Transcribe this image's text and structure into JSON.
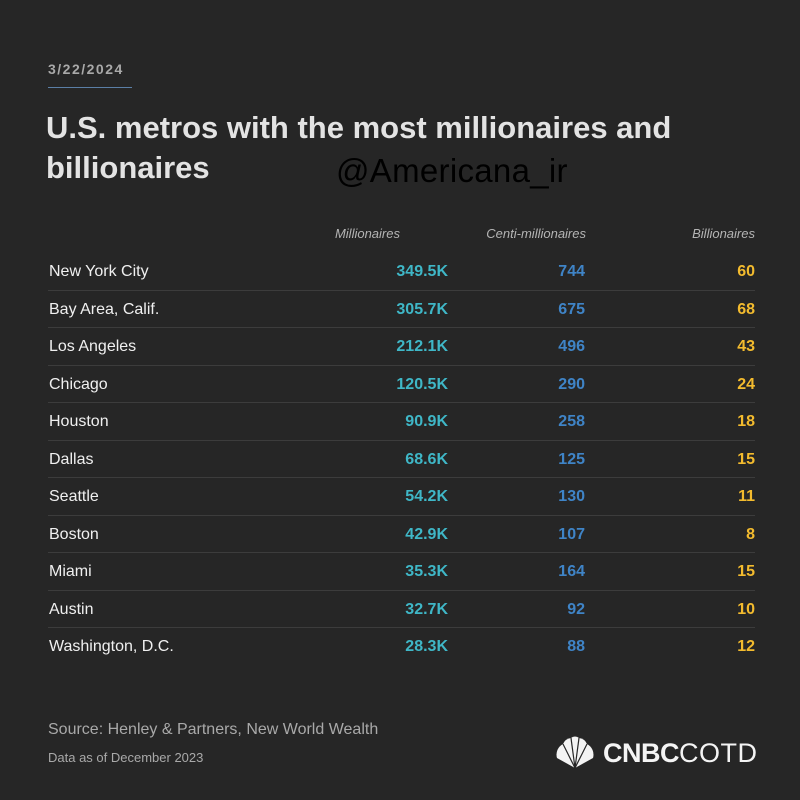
{
  "date": "3/22/2024",
  "title": "U.S. metros with the most millionaires and billionaires",
  "watermark": "@Americana_ir",
  "chart_data": {
    "type": "table",
    "title": "U.S. metros with the most millionaires and billionaires",
    "columns": [
      "Millionaires",
      "Centi-millionaires",
      "Billionaires"
    ],
    "rows": [
      {
        "metro": "New York City",
        "millionaires": "349.5K",
        "centi": "744",
        "billionaires": "60"
      },
      {
        "metro": "Bay Area, Calif.",
        "millionaires": "305.7K",
        "centi": "675",
        "billionaires": "68"
      },
      {
        "metro": "Los Angeles",
        "millionaires": "212.1K",
        "centi": "496",
        "billionaires": "43"
      },
      {
        "metro": "Chicago",
        "millionaires": "120.5K",
        "centi": "290",
        "billionaires": "24"
      },
      {
        "metro": "Houston",
        "millionaires": "90.9K",
        "centi": "258",
        "billionaires": "18"
      },
      {
        "metro": "Dallas",
        "millionaires": "68.6K",
        "centi": "125",
        "billionaires": "15"
      },
      {
        "metro": "Seattle",
        "millionaires": "54.2K",
        "centi": "130",
        "billionaires": "11"
      },
      {
        "metro": "Boston",
        "millionaires": "42.9K",
        "centi": "107",
        "billionaires": "8"
      },
      {
        "metro": "Miami",
        "millionaires": "35.3K",
        "centi": "164",
        "billionaires": "15"
      },
      {
        "metro": "Austin",
        "millionaires": "32.7K",
        "centi": "92",
        "billionaires": "10"
      },
      {
        "metro": "Washington, D.C.",
        "millionaires": "28.3K",
        "centi": "88",
        "billionaires": "12"
      }
    ]
  },
  "colors": {
    "background": "#262626",
    "millionaires": "#3fb7c7",
    "centi": "#3f84c7",
    "billionaires": "#f3bb2e"
  },
  "footer": {
    "source": "Source: Henley & Partners, New World Wealth",
    "as_of": "Data as of December 2023"
  },
  "brand": {
    "icon": "peacock-icon",
    "name_bold": "CNBC",
    "name_light": "COTD"
  }
}
